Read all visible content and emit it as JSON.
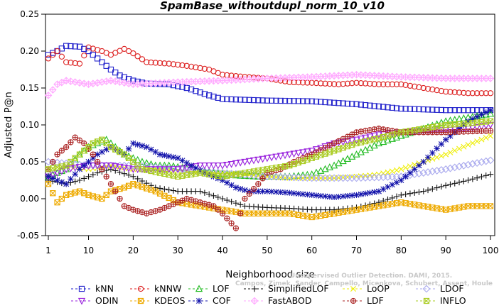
{
  "chart_data": {
    "type": "line",
    "title": "SpamBase_withoutdupl_norm_10_v10",
    "xlabel": "Neighborhood size",
    "ylabel": "Adjusted P@n",
    "xlim": [
      1,
      100
    ],
    "ylim": [
      -0.05,
      0.25
    ],
    "xticks": [
      1,
      10,
      20,
      30,
      40,
      50,
      60,
      70,
      80,
      90,
      100
    ],
    "yticks": [
      -0.05,
      0.0,
      0.05,
      0.1,
      0.15,
      0.2,
      0.25
    ],
    "ytick_labels": [
      "-0.05",
      "0.00",
      "0.05",
      "0.10",
      "0.15",
      "0.20",
      "0.25"
    ],
    "grid": false,
    "legend_position": "bottom",
    "watermark": [
      "Unsupervised Outlier Detection. DAMI, 2015.",
      "Campos, Zimek, Sander, Campello, Micenkova, Schubert, Assent, Houle"
    ],
    "series": [
      {
        "name": "kNN",
        "color": "#2222cc",
        "marker": "square",
        "keypoints": [
          [
            1,
            0.195
          ],
          [
            3,
            0.2
          ],
          [
            5,
            0.207
          ],
          [
            8,
            0.206
          ],
          [
            10,
            0.2
          ],
          [
            13,
            0.185
          ],
          [
            15,
            0.175
          ],
          [
            17,
            0.167
          ],
          [
            20,
            0.16
          ],
          [
            23,
            0.156
          ],
          [
            28,
            0.155
          ],
          [
            32,
            0.15
          ],
          [
            37,
            0.14
          ],
          [
            40,
            0.135
          ],
          [
            50,
            0.133
          ],
          [
            60,
            0.132
          ],
          [
            70,
            0.128
          ],
          [
            80,
            0.122
          ],
          [
            90,
            0.12
          ],
          [
            100,
            0.12
          ]
        ]
      },
      {
        "name": "kNNW",
        "color": "#dd2222",
        "marker": "circle",
        "keypoints": [
          [
            1,
            0.19
          ],
          [
            3,
            0.2
          ],
          [
            5,
            0.185
          ],
          [
            8,
            0.183
          ],
          [
            10,
            0.205
          ],
          [
            13,
            0.2
          ],
          [
            15,
            0.195
          ],
          [
            18,
            0.203
          ],
          [
            20,
            0.197
          ],
          [
            23,
            0.185
          ],
          [
            28,
            0.183
          ],
          [
            32,
            0.18
          ],
          [
            37,
            0.175
          ],
          [
            40,
            0.168
          ],
          [
            45,
            0.165
          ],
          [
            50,
            0.163
          ],
          [
            55,
            0.158
          ],
          [
            60,
            0.157
          ],
          [
            66,
            0.155
          ],
          [
            70,
            0.157
          ],
          [
            75,
            0.155
          ],
          [
            80,
            0.155
          ],
          [
            85,
            0.15
          ],
          [
            90,
            0.145
          ],
          [
            95,
            0.143
          ],
          [
            100,
            0.143
          ]
        ]
      },
      {
        "name": "LOF",
        "color": "#22bb22",
        "marker": "triangle-up",
        "keypoints": [
          [
            1,
            0.03
          ],
          [
            5,
            0.04
          ],
          [
            8,
            0.06
          ],
          [
            10,
            0.07
          ],
          [
            12,
            0.075
          ],
          [
            14,
            0.08
          ],
          [
            16,
            0.07
          ],
          [
            18,
            0.06
          ],
          [
            22,
            0.05
          ],
          [
            25,
            0.045
          ],
          [
            28,
            0.045
          ],
          [
            33,
            0.04
          ],
          [
            38,
            0.035
          ],
          [
            42,
            0.032
          ],
          [
            48,
            0.03
          ],
          [
            55,
            0.03
          ],
          [
            60,
            0.033
          ],
          [
            65,
            0.045
          ],
          [
            70,
            0.06
          ],
          [
            75,
            0.075
          ],
          [
            80,
            0.085
          ],
          [
            85,
            0.095
          ],
          [
            90,
            0.105
          ],
          [
            95,
            0.11
          ],
          [
            100,
            0.115
          ]
        ]
      },
      {
        "name": "SimplifiedLOF",
        "color": "#111111",
        "marker": "plus",
        "keypoints": [
          [
            1,
            0.025
          ],
          [
            5,
            0.02
          ],
          [
            8,
            0.025
          ],
          [
            12,
            0.035
          ],
          [
            15,
            0.04
          ],
          [
            20,
            0.03
          ],
          [
            25,
            0.015
          ],
          [
            30,
            0.01
          ],
          [
            35,
            0.01
          ],
          [
            40,
            0.0
          ],
          [
            45,
            -0.01
          ],
          [
            50,
            -0.012
          ],
          [
            55,
            -0.013
          ],
          [
            60,
            -0.015
          ],
          [
            65,
            -0.015
          ],
          [
            70,
            -0.012
          ],
          [
            75,
            -0.005
          ],
          [
            80,
            0.005
          ],
          [
            85,
            0.01
          ],
          [
            90,
            0.018
          ],
          [
            95,
            0.025
          ],
          [
            100,
            0.033
          ]
        ]
      },
      {
        "name": "LoOP",
        "color": "#eeee00",
        "marker": "x",
        "keypoints": [
          [
            1,
            0.04
          ],
          [
            5,
            0.045
          ],
          [
            10,
            0.04
          ],
          [
            15,
            0.045
          ],
          [
            20,
            0.04
          ],
          [
            25,
            0.04
          ],
          [
            30,
            0.038
          ],
          [
            35,
            0.035
          ],
          [
            40,
            0.035
          ],
          [
            45,
            0.033
          ],
          [
            50,
            0.03
          ],
          [
            55,
            0.028
          ],
          [
            60,
            0.028
          ],
          [
            65,
            0.028
          ],
          [
            70,
            0.03
          ],
          [
            75,
            0.033
          ],
          [
            80,
            0.04
          ],
          [
            85,
            0.05
          ],
          [
            90,
            0.06
          ],
          [
            95,
            0.073
          ],
          [
            100,
            0.085
          ]
        ]
      },
      {
        "name": "LDOF",
        "color": "#aaaaee",
        "marker": "diamond",
        "keypoints": [
          [
            1,
            0.05
          ],
          [
            10,
            0.045
          ],
          [
            20,
            0.045
          ],
          [
            30,
            0.04
          ],
          [
            40,
            0.035
          ],
          [
            50,
            0.03
          ],
          [
            60,
            0.028
          ],
          [
            70,
            0.028
          ],
          [
            80,
            0.03
          ],
          [
            90,
            0.04
          ],
          [
            100,
            0.052
          ]
        ]
      },
      {
        "name": "ODIN",
        "color": "#9922dd",
        "marker": "triangle-down",
        "keypoints": [
          [
            1,
            0.03
          ],
          [
            5,
            0.04
          ],
          [
            10,
            0.045
          ],
          [
            15,
            0.045
          ],
          [
            20,
            0.04
          ],
          [
            25,
            0.04
          ],
          [
            30,
            0.04
          ],
          [
            35,
            0.045
          ],
          [
            40,
            0.045
          ],
          [
            45,
            0.05
          ],
          [
            50,
            0.055
          ],
          [
            55,
            0.06
          ],
          [
            60,
            0.065
          ],
          [
            65,
            0.075
          ],
          [
            70,
            0.08
          ],
          [
            75,
            0.087
          ],
          [
            80,
            0.09
          ],
          [
            85,
            0.092
          ],
          [
            90,
            0.093
          ],
          [
            95,
            0.095
          ],
          [
            100,
            0.1
          ]
        ]
      },
      {
        "name": "KDEOS",
        "color": "#eeaa00",
        "marker": "square-x",
        "keypoints": [
          [
            1,
            0.02
          ],
          [
            3,
            -0.005
          ],
          [
            5,
            0.005
          ],
          [
            8,
            0.01
          ],
          [
            10,
            0.005
          ],
          [
            13,
            0.0
          ],
          [
            15,
            0.01
          ],
          [
            18,
            0.015
          ],
          [
            20,
            0.02
          ],
          [
            25,
            0.01
          ],
          [
            30,
            -0.005
          ],
          [
            35,
            -0.01
          ],
          [
            40,
            -0.015
          ],
          [
            45,
            -0.02
          ],
          [
            50,
            -0.02
          ],
          [
            55,
            -0.02
          ],
          [
            60,
            -0.025
          ],
          [
            65,
            -0.02
          ],
          [
            70,
            -0.015
          ],
          [
            75,
            -0.01
          ],
          [
            80,
            -0.005
          ],
          [
            85,
            -0.01
          ],
          [
            90,
            -0.015
          ],
          [
            95,
            -0.01
          ],
          [
            100,
            -0.01
          ]
        ]
      },
      {
        "name": "COF",
        "color": "#1111aa",
        "marker": "star",
        "keypoints": [
          [
            1,
            0.03
          ],
          [
            5,
            0.02
          ],
          [
            8,
            0.04
          ],
          [
            10,
            0.05
          ],
          [
            12,
            0.06
          ],
          [
            15,
            0.07
          ],
          [
            18,
            0.06
          ],
          [
            20,
            0.075
          ],
          [
            23,
            0.07
          ],
          [
            26,
            0.06
          ],
          [
            30,
            0.055
          ],
          [
            33,
            0.045
          ],
          [
            36,
            0.035
          ],
          [
            40,
            0.025
          ],
          [
            43,
            0.015
          ],
          [
            46,
            0.01
          ],
          [
            50,
            0.01
          ],
          [
            55,
            0.008
          ],
          [
            60,
            0.005
          ],
          [
            65,
            0.002
          ],
          [
            70,
            0.005
          ],
          [
            75,
            0.01
          ],
          [
            80,
            0.025
          ],
          [
            85,
            0.05
          ],
          [
            90,
            0.08
          ],
          [
            95,
            0.105
          ],
          [
            100,
            0.12
          ]
        ]
      },
      {
        "name": "FastABOD",
        "color": "#ffaaff",
        "marker": "diamond-plus",
        "keypoints": [
          [
            1,
            0.14
          ],
          [
            3,
            0.155
          ],
          [
            5,
            0.16
          ],
          [
            10,
            0.155
          ],
          [
            15,
            0.16
          ],
          [
            20,
            0.155
          ],
          [
            30,
            0.158
          ],
          [
            40,
            0.16
          ],
          [
            50,
            0.163
          ],
          [
            60,
            0.165
          ],
          [
            70,
            0.168
          ],
          [
            80,
            0.165
          ],
          [
            90,
            0.163
          ],
          [
            100,
            0.163
          ]
        ]
      },
      {
        "name": "LDF",
        "color": "#aa2222",
        "marker": "circle-plus",
        "keypoints": [
          [
            1,
            0.04
          ],
          [
            3,
            0.06
          ],
          [
            5,
            0.07
          ],
          [
            7,
            0.083
          ],
          [
            9,
            0.075
          ],
          [
            11,
            0.06
          ],
          [
            14,
            0.03
          ],
          [
            16,
            0.01
          ],
          [
            18,
            -0.01
          ],
          [
            20,
            -0.015
          ],
          [
            23,
            -0.02
          ],
          [
            26,
            -0.015
          ],
          [
            28,
            -0.01
          ],
          [
            30,
            -0.005
          ],
          [
            32,
            0.0
          ],
          [
            35,
            -0.005
          ],
          [
            38,
            -0.01
          ],
          [
            40,
            -0.02
          ],
          [
            43,
            -0.04
          ],
          [
            45,
            0.0
          ],
          [
            48,
            0.02
          ],
          [
            50,
            0.035
          ],
          [
            53,
            0.04
          ],
          [
            56,
            0.05
          ],
          [
            60,
            0.06
          ],
          [
            65,
            0.075
          ],
          [
            70,
            0.09
          ],
          [
            75,
            0.095
          ],
          [
            80,
            0.09
          ],
          [
            90,
            0.09
          ],
          [
            100,
            0.092
          ]
        ]
      },
      {
        "name": "INFLO",
        "color": "#aacc22",
        "marker": "square-x",
        "keypoints": [
          [
            1,
            0.04
          ],
          [
            5,
            0.045
          ],
          [
            8,
            0.06
          ],
          [
            11,
            0.075
          ],
          [
            13,
            0.08
          ],
          [
            15,
            0.07
          ],
          [
            18,
            0.06
          ],
          [
            22,
            0.04
          ],
          [
            26,
            0.035
          ],
          [
            30,
            0.03
          ],
          [
            35,
            0.035
          ],
          [
            40,
            0.03
          ],
          [
            45,
            0.035
          ],
          [
            50,
            0.04
          ],
          [
            55,
            0.045
          ],
          [
            60,
            0.055
          ],
          [
            65,
            0.065
          ],
          [
            70,
            0.075
          ],
          [
            75,
            0.082
          ],
          [
            80,
            0.09
          ],
          [
            85,
            0.095
          ],
          [
            90,
            0.1
          ],
          [
            95,
            0.102
          ],
          [
            100,
            0.105
          ]
        ]
      }
    ]
  }
}
